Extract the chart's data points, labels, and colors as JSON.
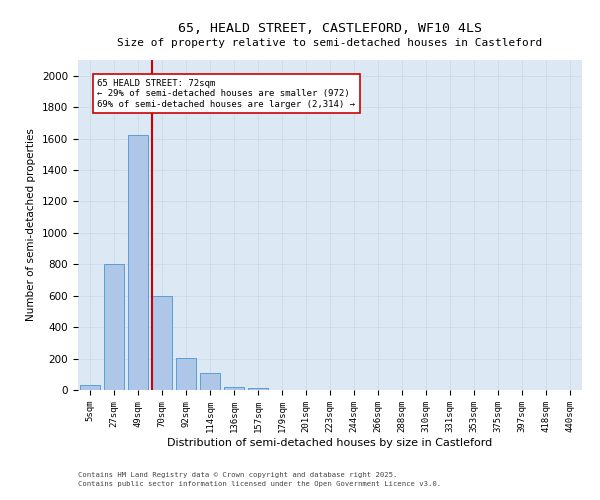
{
  "title_line1": "65, HEALD STREET, CASTLEFORD, WF10 4LS",
  "title_line2": "Size of property relative to semi-detached houses in Castleford",
  "xlabel": "Distribution of semi-detached houses by size in Castleford",
  "ylabel": "Number of semi-detached properties",
  "categories": [
    "5sqm",
    "27sqm",
    "49sqm",
    "70sqm",
    "92sqm",
    "114sqm",
    "136sqm",
    "157sqm",
    "179sqm",
    "201sqm",
    "223sqm",
    "244sqm",
    "266sqm",
    "288sqm",
    "310sqm",
    "331sqm",
    "353sqm",
    "375sqm",
    "397sqm",
    "418sqm",
    "440sqm"
  ],
  "values": [
    35,
    800,
    1620,
    600,
    205,
    110,
    20,
    15,
    0,
    0,
    0,
    0,
    0,
    0,
    0,
    0,
    0,
    0,
    0,
    0,
    0
  ],
  "bar_color": "#aec6e8",
  "bar_edge_color": "#5a9fd4",
  "grid_color": "#c8d8e8",
  "background_color": "#dce9f5",
  "red_line_index": 3,
  "annotation_text": "65 HEALD STREET: 72sqm\n← 29% of semi-detached houses are smaller (972)\n69% of semi-detached houses are larger (2,314) →",
  "red_line_color": "#cc0000",
  "annotation_box_color": "#ffffff",
  "annotation_box_edge": "#cc0000",
  "footer_line1": "Contains HM Land Registry data © Crown copyright and database right 2025.",
  "footer_line2": "Contains public sector information licensed under the Open Government Licence v3.0.",
  "ylim": [
    0,
    2100
  ],
  "yticks": [
    0,
    200,
    400,
    600,
    800,
    1000,
    1200,
    1400,
    1600,
    1800,
    2000
  ]
}
